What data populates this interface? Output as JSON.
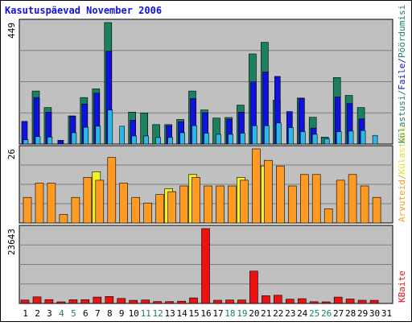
{
  "chart_data": {
    "type": "bar",
    "title": "Kasutuspäevad November 2006",
    "categories": [
      "1",
      "2",
      "3",
      "4",
      "5",
      "6",
      "7",
      "8",
      "9",
      "10",
      "11",
      "12",
      "13",
      "14",
      "15",
      "16",
      "17",
      "18",
      "19",
      "20",
      "21",
      "22",
      "23",
      "24",
      "25",
      "26",
      "27",
      "28",
      "29",
      "30",
      "31"
    ],
    "weekend_days": [
      "4",
      "5",
      "11",
      "12",
      "18",
      "19",
      "25",
      "26"
    ],
    "panels": [
      {
        "id": "top",
        "max_label": "449",
        "ylim": [
          0,
          449
        ],
        "grid": true,
        "series": [
          {
            "name": "Külastusi",
            "color": "#1a8060",
            "values": [
              null,
              196,
              135,
              null,
              104,
              172,
              204,
              449,
              null,
              118,
              115,
              72,
              72,
              91,
              196,
              126,
              96,
              98,
              144,
              333,
              376,
              162,
              null,
              170,
              99,
              26,
              246,
              180,
              135,
              null,
              null
            ]
          },
          {
            "name": "Faile",
            "color": "#1111dd",
            "values": [
              84,
              172,
              118,
              14,
              102,
              148,
              188,
              343,
              null,
              88,
              null,
              null,
              68,
              83,
              168,
              116,
              null,
              92,
              118,
              230,
              266,
              250,
              120,
              169,
              59,
              null,
              174,
              150,
              93,
              null,
              null
            ]
          },
          {
            "name": "Pöördumisi",
            "color": "#2ab8e8",
            "values": [
              16,
              28,
              26,
              null,
              42,
              62,
              66,
              126,
              66,
              30,
              30,
              24,
              24,
              42,
              68,
              40,
              36,
              36,
              40,
              68,
              68,
              78,
              61,
              46,
              36,
              20,
              46,
              48,
              50,
              32,
              null
            ]
          }
        ]
      },
      {
        "id": "mid",
        "max_label": "26",
        "ylim": [
          0,
          26
        ],
        "grid": true,
        "series": [
          {
            "name": "Külastusi",
            "color": "#f4f422",
            "values": [
              null,
              null,
              null,
              null,
              null,
              null,
              18,
              null,
              null,
              null,
              null,
              null,
              12,
              null,
              17,
              null,
              null,
              null,
              16,
              null,
              20,
              null,
              null,
              null,
              null,
              null,
              null,
              null,
              null,
              null,
              null
            ]
          },
          {
            "name": "Arvuteid",
            "color": "#ff9a22",
            "values": [
              9,
              14,
              14,
              3,
              9,
              16,
              15,
              23,
              14,
              9,
              7,
              10,
              11,
              13,
              16,
              13,
              13,
              13,
              15,
              26,
              22,
              20,
              13,
              17,
              17,
              5,
              15,
              17,
              13,
              9,
              null
            ]
          }
        ]
      },
      {
        "id": "bottom",
        "max_label": "23643",
        "ylim": [
          0,
          23643
        ],
        "grid": true,
        "series": [
          {
            "name": "KBaite",
            "color": "#ee1111",
            "values": [
              1080,
              2094,
              1209,
              323,
              1162,
              1200,
              2000,
              2200,
              1580,
              1000,
              1100,
              620,
              580,
              720,
              1750,
              23643,
              1020,
              1100,
              1100,
              10215,
              2450,
              2600,
              1350,
              1500,
              570,
              340,
              2000,
              1410,
              1020,
              1000,
              null
            ]
          }
        ]
      }
    ],
    "right_labels": {
      "top": [
        "Külastusi",
        "/",
        "Faile",
        "/",
        "Pöördumisi"
      ],
      "top_colors": [
        "#1a8060",
        "#1a8060",
        "#1111dd",
        "#1111dd",
        "#1a8060"
      ],
      "mid": [
        "Arvuteid",
        "/",
        "Külastusi"
      ],
      "mid_colors": [
        "#ff9a22",
        "#ff9a22",
        "#e0e022"
      ],
      "bottom": [
        "KBaite"
      ],
      "bottom_colors": [
        "#ee1111"
      ]
    },
    "colors": {
      "background": "#c0c0c0",
      "grid": "#808080",
      "title": "#1111dd",
      "weekday_label": "#000000",
      "weekend_label": "#1a8060"
    }
  }
}
